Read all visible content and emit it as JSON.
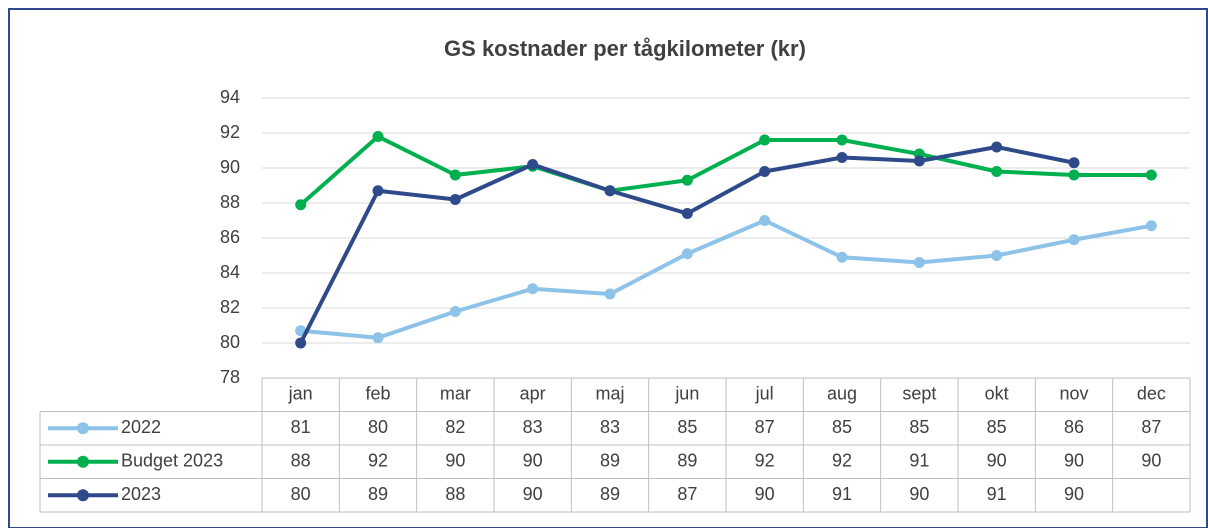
{
  "chart_data": {
    "type": "line",
    "title": "GS kostnader per tågkilometer (kr)",
    "categories": [
      "jan",
      "feb",
      "mar",
      "apr",
      "maj",
      "jun",
      "jul",
      "aug",
      "sept",
      "okt",
      "nov",
      "dec"
    ],
    "series": [
      {
        "name": "2022",
        "color": "#8dc3e8",
        "values": [
          80.7,
          80.3,
          81.8,
          83.1,
          82.8,
          85.1,
          87.0,
          84.9,
          84.6,
          85.0,
          85.9,
          86.7
        ],
        "value_labels": [
          "81",
          "80",
          "82",
          "83",
          "83",
          "85",
          "87",
          "85",
          "85",
          "85",
          "86",
          "87"
        ]
      },
      {
        "name": "Budget 2023",
        "color": "#00b04f",
        "values": [
          87.9,
          91.8,
          89.6,
          90.1,
          88.7,
          89.3,
          91.6,
          91.6,
          90.8,
          89.8,
          89.6,
          89.6
        ],
        "value_labels": [
          "88",
          "92",
          "90",
          "90",
          "89",
          "89",
          "92",
          "92",
          "91",
          "90",
          "90",
          "90"
        ]
      },
      {
        "name": "2023",
        "color": "#2e4a8a",
        "values": [
          80.0,
          88.7,
          88.2,
          90.2,
          88.7,
          87.4,
          89.8,
          90.6,
          90.4,
          91.2,
          90.3,
          null
        ],
        "value_labels": [
          "80",
          "89",
          "88",
          "90",
          "89",
          "87",
          "90",
          "91",
          "90",
          "91",
          "90",
          null
        ]
      }
    ],
    "ylim": [
      78,
      94
    ],
    "yticks": [
      78,
      80,
      82,
      84,
      86,
      88,
      90,
      92,
      94
    ],
    "grid": true
  }
}
